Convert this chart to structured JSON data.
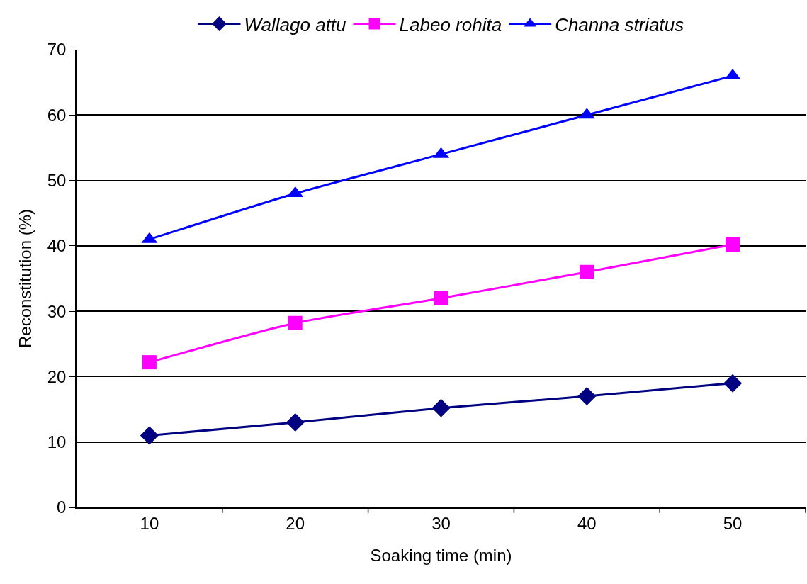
{
  "chart_data": {
    "type": "line",
    "xlabel": "Soaking time (min)",
    "ylabel": "Reconstitution (%)",
    "categories": [
      "10",
      "20",
      "30",
      "40",
      "50"
    ],
    "series": [
      {
        "name": "Wallago attu",
        "color": "#000080",
        "marker": "diamond",
        "values": [
          11,
          13,
          15.2,
          17,
          19
        ]
      },
      {
        "name": "Labeo rohita",
        "color": "#ff00ff",
        "marker": "square",
        "values": [
          22.2,
          28.2,
          32,
          36,
          40.2
        ]
      },
      {
        "name": "Channa striatus",
        "color": "#0000ff",
        "marker": "triangle",
        "values": [
          41,
          48,
          54,
          60,
          66
        ]
      }
    ],
    "ylim": [
      0,
      70
    ],
    "yticks": [
      0,
      10,
      20,
      30,
      40,
      50,
      60,
      70
    ],
    "grid": "y",
    "legend": "top",
    "line_style": "solid"
  }
}
